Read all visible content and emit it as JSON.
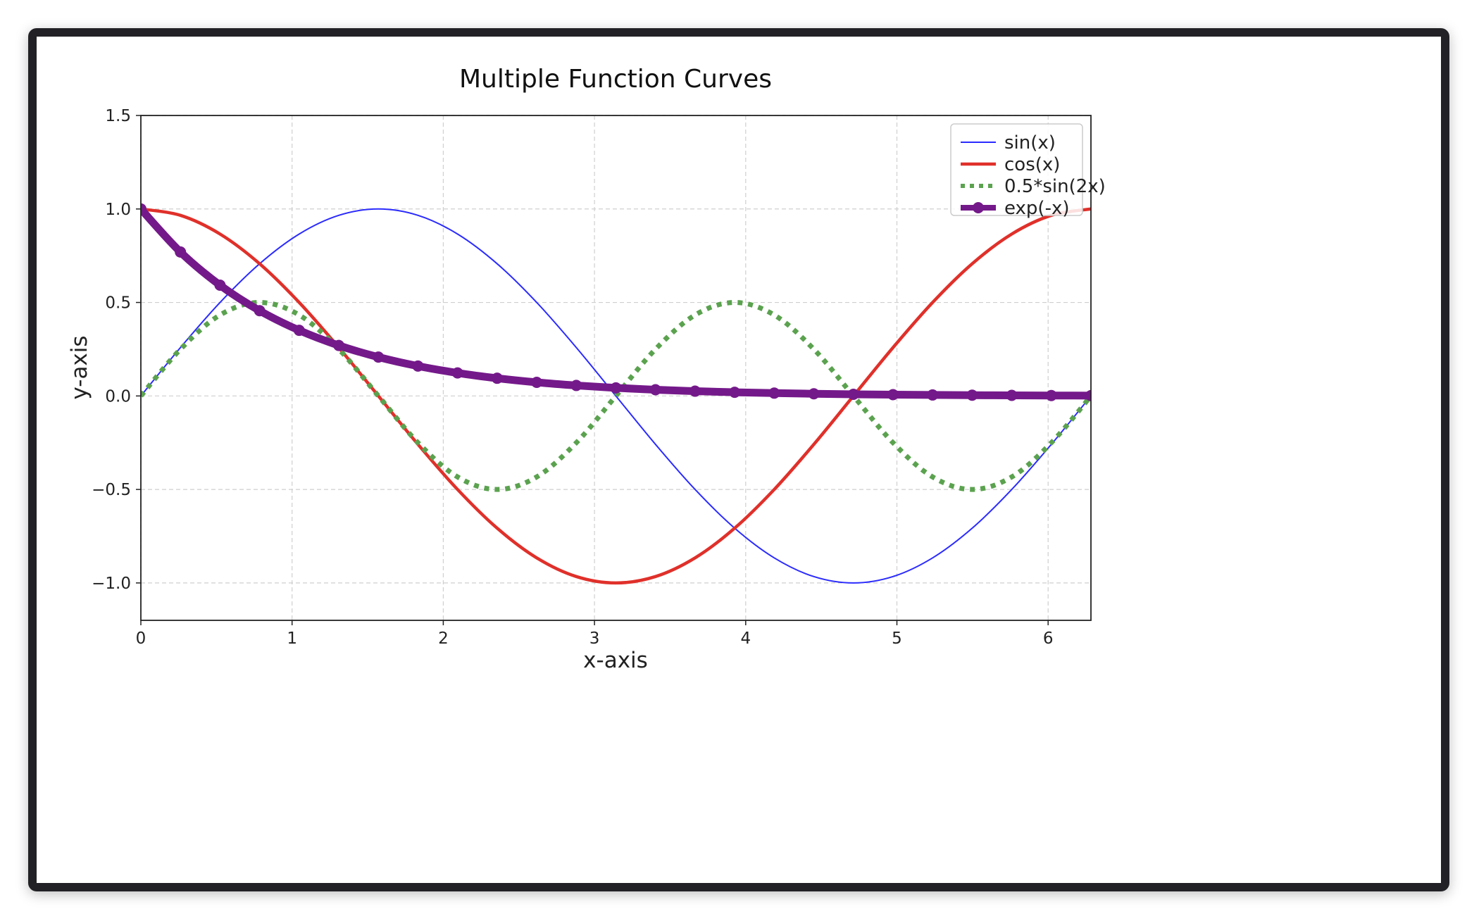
{
  "chart_data": {
    "type": "line",
    "title": "Multiple Function Curves",
    "xlabel": "x-axis",
    "ylabel": "y-axis",
    "xlim": [
      0,
      6.2832
    ],
    "ylim": [
      -1.2,
      1.5
    ],
    "xticks": [
      0,
      1,
      2,
      3,
      4,
      5,
      6
    ],
    "xtick_labels": [
      "0",
      "1",
      "2",
      "3",
      "4",
      "5",
      "6"
    ],
    "yticks": [
      -1.0,
      -0.5,
      0.0,
      0.5,
      1.0,
      1.5
    ],
    "ytick_labels": [
      "−1.0",
      "−0.5",
      "0.0",
      "0.5",
      "1.0",
      "1.5"
    ],
    "grid": true,
    "legend_position": "top-right",
    "series": [
      {
        "name": "sin(x)",
        "color": "#2b2bff",
        "style": "solid",
        "x": [
          0,
          0.2618,
          0.5236,
          0.7854,
          1.0472,
          1.309,
          1.5708,
          1.8326,
          2.0944,
          2.3562,
          2.618,
          2.8798,
          3.1416,
          3.4034,
          3.6652,
          3.927,
          4.1888,
          4.4506,
          4.7124,
          4.9742,
          5.236,
          5.4978,
          5.7596,
          6.0214,
          6.2832
        ],
        "y": [
          0,
          0.2588,
          0.5,
          0.7071,
          0.866,
          0.9659,
          1,
          0.9659,
          0.866,
          0.7071,
          0.5,
          0.2588,
          0,
          -0.2588,
          -0.5,
          -0.7071,
          -0.866,
          -0.9659,
          -1,
          -0.9659,
          -0.866,
          -0.7071,
          -0.5,
          -0.2588,
          0
        ]
      },
      {
        "name": "cos(x)",
        "color": "#e0302a",
        "style": "solid-thick",
        "x": [
          0,
          0.2618,
          0.5236,
          0.7854,
          1.0472,
          1.309,
          1.5708,
          1.8326,
          2.0944,
          2.3562,
          2.618,
          2.8798,
          3.1416,
          3.4034,
          3.6652,
          3.927,
          4.1888,
          4.4506,
          4.7124,
          4.9742,
          5.236,
          5.4978,
          5.7596,
          6.0214,
          6.2832
        ],
        "y": [
          1,
          0.9659,
          0.866,
          0.7071,
          0.5,
          0.2588,
          0,
          -0.2588,
          -0.5,
          -0.7071,
          -0.866,
          -0.9659,
          -1,
          -0.9659,
          -0.866,
          -0.7071,
          -0.5,
          -0.2588,
          0,
          0.2588,
          0.5,
          0.7071,
          0.866,
          0.9659,
          1
        ]
      },
      {
        "name": "0.5*sin(2x)",
        "color": "#5ba24f",
        "style": "dotted",
        "x": [
          0,
          0.2618,
          0.5236,
          0.7854,
          1.0472,
          1.309,
          1.5708,
          1.8326,
          2.0944,
          2.3562,
          2.618,
          2.8798,
          3.1416,
          3.4034,
          3.6652,
          3.927,
          4.1888,
          4.4506,
          4.7124,
          4.9742,
          5.236,
          5.4978,
          5.7596,
          6.0214,
          6.2832
        ],
        "y": [
          0,
          0.25,
          0.433,
          0.5,
          0.433,
          0.25,
          0,
          -0.25,
          -0.433,
          -0.5,
          -0.433,
          -0.25,
          0,
          0.25,
          0.433,
          0.5,
          0.433,
          0.25,
          0,
          -0.25,
          -0.433,
          -0.5,
          -0.433,
          -0.25,
          0
        ]
      },
      {
        "name": "exp(-x)",
        "color": "#74198a",
        "style": "thick-markers",
        "x": [
          0,
          0.2618,
          0.5236,
          0.7854,
          1.0472,
          1.309,
          1.5708,
          1.8326,
          2.0944,
          2.3562,
          2.618,
          2.8798,
          3.1416,
          3.4034,
          3.6652,
          3.927,
          4.1888,
          4.4506,
          4.7124,
          4.9742,
          5.236,
          5.4978,
          5.7596,
          6.0214,
          6.2832
        ],
        "y": [
          1,
          0.7697,
          0.5924,
          0.456,
          0.3509,
          0.2701,
          0.2079,
          0.16,
          0.1231,
          0.0948,
          0.0729,
          0.0561,
          0.0432,
          0.0333,
          0.0256,
          0.0197,
          0.0152,
          0.0117,
          0.009,
          0.0069,
          0.0053,
          0.0041,
          0.0032,
          0.0024,
          0.0019
        ]
      }
    ]
  }
}
